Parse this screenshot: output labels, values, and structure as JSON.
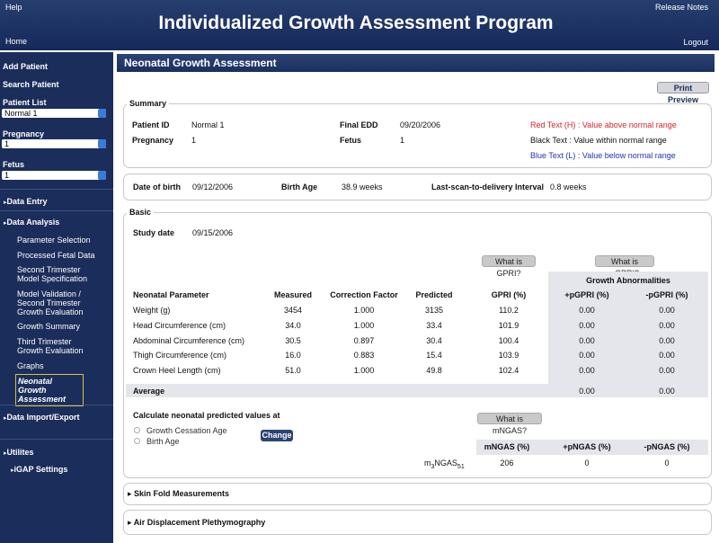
{
  "header": {
    "help": "Help",
    "title": "Individualized Growth Assessment Program",
    "release_notes": "Release Notes",
    "home": "Home",
    "logout": "Logout"
  },
  "sidebar": {
    "add_patient": "Add Patient",
    "search_patient": "Search Patient",
    "patient_list": {
      "label": "Patient List",
      "selected": "Normal 1"
    },
    "pregnancy": {
      "label": "Pregnancy",
      "selected": "1"
    },
    "fetus": {
      "label": "Fetus",
      "selected": "1"
    },
    "data_entry": "Data Entry",
    "data_analysis": {
      "label": "Data Analysis",
      "items": [
        "Parameter Selection",
        "Processed Fetal Data",
        "Second Trimester Model Specification",
        "Model Validation / Second Trimester Growth Evaluation",
        "Growth Summary",
        "Third Trimester Growth Evaluation",
        "Graphs",
        "Neonatal Growth Assessment"
      ]
    },
    "data_import_export": "Data Import/Export",
    "utilities": {
      "label": "Utilites",
      "items": [
        "iGAP Settings"
      ]
    }
  },
  "page": {
    "title": "Neonatal Growth Assessment",
    "print_preview": "Print Preview",
    "summary": {
      "title": "Summary",
      "fields": [
        {
          "label": "Patient ID",
          "value": "Normal 1"
        },
        {
          "label": "Pregnancy",
          "value": "1"
        },
        {
          "label": "Final EDD",
          "value": "09/20/2006"
        },
        {
          "label": "Fetus",
          "value": "1"
        }
      ],
      "legend": [
        "Red Text (H) : Value above normal range",
        "Black Text : Value within normal range",
        "Blue Text (L) : Value below normal range"
      ]
    },
    "birth": {
      "fields": [
        {
          "label": "Date of birth",
          "value": "09/12/2006"
        },
        {
          "label": "Birth Age",
          "value": "38.9 weeks"
        },
        {
          "label": "Last-scan-to-delivery Interval",
          "value": "0.8 weeks"
        }
      ]
    },
    "basic": {
      "title": "Basic",
      "study_date": {
        "label": "Study date",
        "value": "09/15/2006"
      },
      "what_gpri": "What is GPRI?",
      "what_pgpri": "What is pGPRI?",
      "growth_abnormalities": "Growth Abnormalities",
      "table": {
        "columns": [
          "Neonatal Parameter",
          "Measured",
          "Correction Factor",
          "Predicted",
          "GPRI (%)",
          "+pGPRI (%)",
          "-pGPRI (%)"
        ],
        "rows": [
          [
            "Weight (g)",
            "3454",
            "1.000",
            "3135",
            "110.2",
            "0.00",
            "0.00"
          ],
          [
            "Head Circumference (cm)",
            "34.0",
            "1.000",
            "33.4",
            "101.9",
            "0.00",
            "0.00"
          ],
          [
            "Abdominal Circumference (cm)",
            "30.5",
            "0.897",
            "30.4",
            "100.4",
            "0.00",
            "0.00"
          ],
          [
            "Thigh Circumference (cm)",
            "16.0",
            "0.883",
            "15.4",
            "103.9",
            "0.00",
            "0.00"
          ],
          [
            "Crown Heel Length (cm)",
            "51.0",
            "1.000",
            "49.8",
            "102.4",
            "0.00",
            "0.00"
          ]
        ],
        "average": {
          "label": "Average",
          "plus": "0.00",
          "minus": "0.00"
        }
      },
      "calc": {
        "prompt": "Calculate neonatal predicted values at",
        "options": [
          "Growth Cessation Age",
          "Birth Age"
        ],
        "change": "Change",
        "what_mngas": "What is mNGAS?",
        "columns": [
          "mNGAS (%)",
          "+pNGAS (%)",
          "-pNGAS (%)"
        ],
        "row": {
          "label_parts": [
            "m",
            "3",
            "NGAS",
            "51"
          ],
          "values": [
            "206",
            "0",
            "0"
          ]
        }
      }
    },
    "sections": [
      "Skin Fold Measurements",
      "Air Displacement Plethymography"
    ]
  }
}
